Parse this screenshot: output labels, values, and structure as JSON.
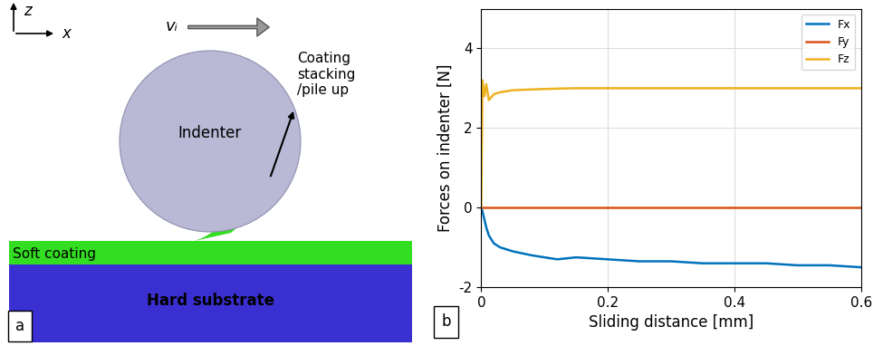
{
  "diagram": {
    "axis_z": "z",
    "axis_x": "x",
    "velocity": "vᵢ",
    "indenter": "Indenter",
    "pile_up": "Coating\nstacking\n/pile up",
    "coating": "Soft coating",
    "substrate": "Hard substrate",
    "panel": "a"
  },
  "chart_data": {
    "type": "line",
    "panel": "b",
    "x_label": "Sliding distance [mm]",
    "y_label": "Forces on indenter [N]",
    "x": [
      0,
      0.002,
      0.005,
      0.008,
      0.012,
      0.02,
      0.03,
      0.05,
      0.08,
      0.1,
      0.12,
      0.15,
      0.2,
      0.25,
      0.3,
      0.35,
      0.4,
      0.45,
      0.5,
      0.55,
      0.6
    ],
    "series": [
      {
        "name": "Fx",
        "color": "#0072BD",
        "values": [
          0,
          -0.1,
          -0.3,
          -0.5,
          -0.7,
          -0.9,
          -1.0,
          -1.1,
          -1.2,
          -1.25,
          -1.3,
          -1.25,
          -1.3,
          -1.35,
          -1.35,
          -1.4,
          -1.4,
          -1.4,
          -1.45,
          -1.45,
          -1.5
        ]
      },
      {
        "name": "Fy",
        "color": "#D95319",
        "values": [
          0,
          0,
          0,
          0,
          0,
          0,
          0,
          0,
          0,
          0,
          0,
          0,
          0,
          0,
          0,
          0,
          0,
          0,
          0,
          0,
          0
        ]
      },
      {
        "name": "Fz",
        "color": "#EDB120",
        "values": [
          0,
          3.2,
          2.8,
          3.1,
          2.7,
          2.85,
          2.9,
          2.95,
          2.97,
          2.98,
          2.99,
          3.0,
          3.0,
          3.0,
          3.0,
          3.0,
          3.0,
          3.0,
          3.0,
          3.0,
          3.0
        ]
      }
    ],
    "xlim": [
      0,
      0.6
    ],
    "xticks": [
      0,
      0.2,
      0.4,
      0.6
    ],
    "ylim": [
      -2,
      5
    ],
    "yticks": [
      -2,
      0,
      2,
      4
    ],
    "grid": true,
    "legend": "upper right"
  }
}
